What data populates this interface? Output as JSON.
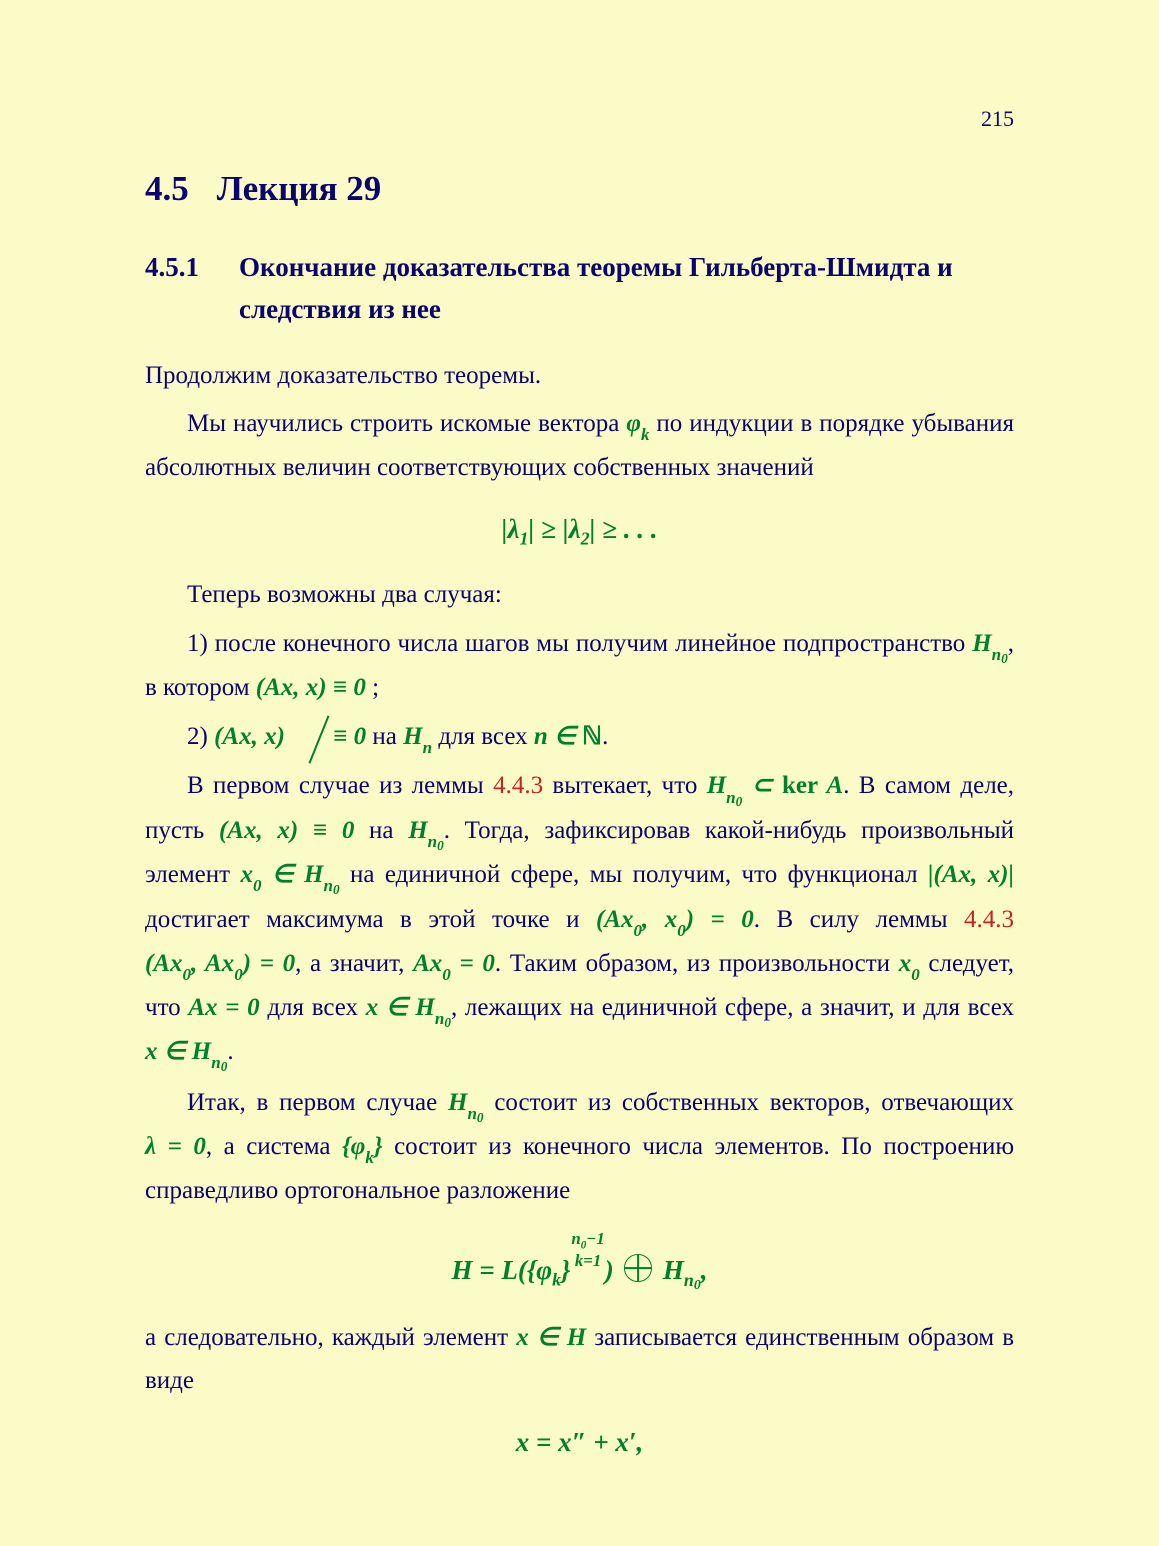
{
  "page": {
    "number": "215"
  },
  "colors": {
    "background": "#fbfbc8",
    "text": "#0c046e",
    "math": "#00802b",
    "link": "#c62020"
  },
  "typography": {
    "body_font": "Times New Roman",
    "body_fontsize_pt": 19,
    "h2_fontsize_pt": 26,
    "h3_fontsize_pt": 20,
    "line_height": 1.7
  },
  "section": {
    "number": "4.5",
    "title": "Лекция 29"
  },
  "subsection": {
    "number": "4.5.1",
    "title": "Окончание доказательства теоремы Гильберта-Шмидта и следствия из нее"
  },
  "para": {
    "p1": "Продолжим доказательство теоремы.",
    "p2a": "Мы научились строить искомые вектора ",
    "p2m1": "φ",
    "p2m1s": "k",
    "p2b": " по индукции в порядке убывания абсолютных величин соответствующих собственных значений",
    "eq1": "|λ₁| ≥ |λ₂| ≥ . . .",
    "p3": "Теперь возможны два случая:",
    "c1a": "1) после конечного числа шагов мы получим линейное подпространство ",
    "c1m1": "H",
    "c1m1s": "n",
    "c1m1ss": "0",
    "c1b": ", в котором ",
    "c1m2": "(Ax, x) ≡ 0",
    "c1c": " ;",
    "c2a": "2) ",
    "c2m1": "(Ax, x)",
    "c2eq": " ≡ ",
    "c2m2": "0",
    "c2b": " на ",
    "c2m3": "H",
    "c2m3s": "n",
    "c2c": " для всех ",
    "c2m4": "n ∈ ",
    "c2m4N": "ℕ",
    "c2d": ".",
    "p4a": "В первом случае из леммы ",
    "lemma1": "4.4.3",
    "p4b": " вытекает, что ",
    "p4m1": "H",
    "p4m1s": "n",
    "p4m1ss": "0",
    "p4m1b": " ⊂ ker A",
    "p4c": ". В самом деле, пусть ",
    "p4m2": "(Ax, x) ≡ 0",
    "p4d": " на ",
    "p4m3": "H",
    "p4m3s": "n",
    "p4m3ss": "0",
    "p4e": ". Тогда, зафиксировав какой-нибудь произвольный элемент ",
    "p4m4": "x",
    "p4m4s": "0",
    "p4m4in": " ∈ H",
    "p4m4ins": "n",
    "p4m4inss": "0",
    "p4f": " на единичной сфере, мы получим, что функционал ",
    "p4m5": "|(Ax, x)|",
    "p4g": " достигает максимума в этой точке и ",
    "p4m6": "(Ax",
    "p4m6s": "0",
    "p4m6b": ", x",
    "p4m6s2": "0",
    "p4m6c": ") = 0",
    "p4h": ". В силу леммы ",
    "lemma2": "4.4.3",
    "p4i": " ",
    "p4m7": "(Ax",
    "p4m7s": "0",
    "p4m7b": ", Ax",
    "p4m7s2": "0",
    "p4m7c": ") = 0",
    "p4j": ", а значит, ",
    "p4m8": "Ax",
    "p4m8s": "0",
    "p4m8b": " = 0",
    "p4k": ". Таким образом, из произвольности ",
    "p4m9": "x",
    "p4m9s": "0",
    "p4l": " следует, что ",
    "p4m10": "Ax = 0",
    "p4m": " для всех ",
    "p4m11": "x ∈ H",
    "p4m11s": "n",
    "p4m11ss": "0",
    "p4n": ", лежащих на единичной сфере, а значит, и для всех ",
    "p4m12": "x ∈ H",
    "p4m12s": "n",
    "p4m12ss": "0",
    "p4o": ".",
    "p5a": "Итак, в первом случае ",
    "p5m1": "H",
    "p5m1s": "n",
    "p5m1ss": "0",
    "p5b": " состоит из собственных векторов, отвечающих ",
    "p5m2": "λ = 0",
    "p5c": ", а система ",
    "p5m3": "{φ",
    "p5m3s": "k",
    "p5m3b": "}",
    "p5d": " состоит из конечного числа элементов. По построению справедливо ортогональное разложение",
    "eq2a": "H = ",
    "eq2L": "L",
    "eq2b": "({φ",
    "eq2bs": "k",
    "eq2c": "}",
    "eq2frac_top": "n₀−1",
    "eq2frac_bot": "k=1",
    "eq2d": ") ",
    "eq2e": " H",
    "eq2es": "n",
    "eq2ess": "0",
    "eq2f": ",",
    "p6a": "а следовательно, каждый элемент ",
    "p6m1": "x ∈ H",
    "p6b": " записывается единственным образом в виде",
    "eq3": "x = x″ + x′,"
  }
}
